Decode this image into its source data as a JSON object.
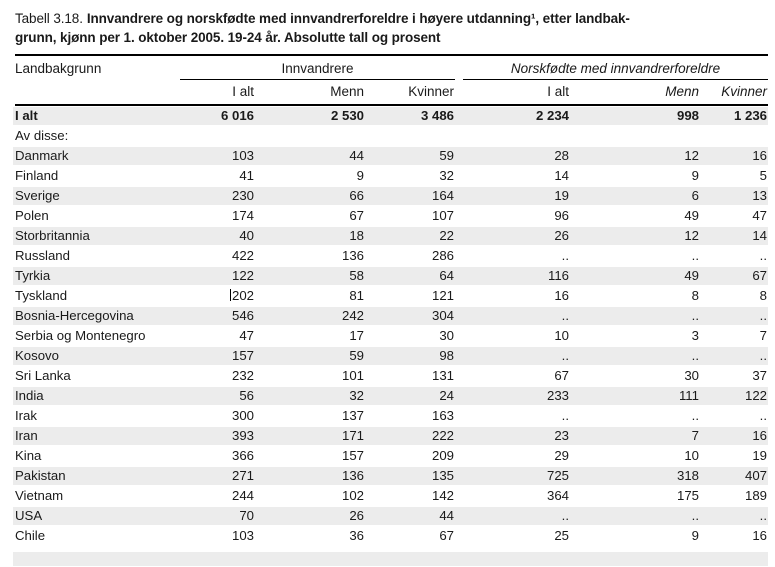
{
  "title": {
    "prefix": "Tabell 3.18.",
    "line1": "Innvandrere og norskfødte med innvandrerforeldre i høyere utdanning¹, etter landbak-",
    "line2": "grunn, kjønn per 1. oktober 2005. 19-24 år. Absolutte tall og prosent"
  },
  "table": {
    "stub_header": "Landbakgrunn",
    "groups": [
      {
        "label": "Innvandrere",
        "italic": false
      },
      {
        "label": "Norskfødte med innvandrerforeldre",
        "italic": true
      }
    ],
    "columns": [
      {
        "label": "I alt",
        "italic": false
      },
      {
        "label": "Menn",
        "italic": false
      },
      {
        "label": "Kvinner",
        "italic": false
      },
      {
        "label": "I alt",
        "italic": false
      },
      {
        "label": "Menn",
        "italic": true
      },
      {
        "label": "Kvinner",
        "italic": true
      }
    ],
    "rows": [
      {
        "label": "I alt",
        "bold": true,
        "shaded": true,
        "values": [
          "6 016",
          "2 530",
          "3 486",
          "2 234",
          "998",
          "1 236"
        ]
      },
      {
        "label": "Av disse:",
        "bold": false,
        "shaded": false,
        "values": [
          "",
          "",
          "",
          "",
          "",
          ""
        ]
      },
      {
        "label": "Danmark",
        "bold": false,
        "shaded": true,
        "values": [
          "103",
          "44",
          "59",
          "28",
          "12",
          "16"
        ]
      },
      {
        "label": "Finland",
        "bold": false,
        "shaded": false,
        "values": [
          "41",
          "9",
          "32",
          "14",
          "9",
          "5"
        ]
      },
      {
        "label": "Sverige",
        "bold": false,
        "shaded": true,
        "values": [
          "230",
          "66",
          "164",
          "19",
          "6",
          "13"
        ]
      },
      {
        "label": "Polen",
        "bold": false,
        "shaded": false,
        "values": [
          "174",
          "67",
          "107",
          "96",
          "49",
          "47"
        ]
      },
      {
        "label": "Storbritannia",
        "bold": false,
        "shaded": true,
        "values": [
          "40",
          "18",
          "22",
          "26",
          "12",
          "14"
        ]
      },
      {
        "label": "Russland",
        "bold": false,
        "shaded": false,
        "values": [
          "422",
          "136",
          "286",
          "..",
          "..",
          ".."
        ]
      },
      {
        "label": "Tyrkia",
        "bold": false,
        "shaded": true,
        "values": [
          "122",
          "58",
          "64",
          "116",
          "49",
          "67"
        ]
      },
      {
        "label": "Tyskland",
        "bold": false,
        "shaded": false,
        "caret": true,
        "values": [
          "202",
          "81",
          "121",
          "16",
          "8",
          "8"
        ]
      },
      {
        "label": "Bosnia-Hercegovina",
        "bold": false,
        "shaded": true,
        "values": [
          "546",
          "242",
          "304",
          "..",
          "..",
          ".."
        ]
      },
      {
        "label": "Serbia og Montenegro",
        "bold": false,
        "shaded": false,
        "values": [
          "47",
          "17",
          "30",
          "10",
          "3",
          "7"
        ]
      },
      {
        "label": "Kosovo",
        "bold": false,
        "shaded": true,
        "values": [
          "157",
          "59",
          "98",
          "..",
          "..",
          ".."
        ]
      },
      {
        "label": "Sri Lanka",
        "bold": false,
        "shaded": false,
        "values": [
          "232",
          "101",
          "131",
          "67",
          "30",
          "37"
        ]
      },
      {
        "label": "India",
        "bold": false,
        "shaded": true,
        "values": [
          "56",
          "32",
          "24",
          "233",
          "111",
          "122"
        ]
      },
      {
        "label": "Irak",
        "bold": false,
        "shaded": false,
        "values": [
          "300",
          "137",
          "163",
          "..",
          "..",
          ".."
        ]
      },
      {
        "label": "Iran",
        "bold": false,
        "shaded": true,
        "values": [
          "393",
          "171",
          "222",
          "23",
          "7",
          "16"
        ]
      },
      {
        "label": "Kina",
        "bold": false,
        "shaded": false,
        "values": [
          "366",
          "157",
          "209",
          "29",
          "10",
          "19"
        ]
      },
      {
        "label": "Pakistan",
        "bold": false,
        "shaded": true,
        "values": [
          "271",
          "136",
          "135",
          "725",
          "318",
          "407"
        ]
      },
      {
        "label": "Vietnam",
        "bold": false,
        "shaded": false,
        "values": [
          "244",
          "102",
          "142",
          "364",
          "175",
          "189"
        ]
      },
      {
        "label": "USA",
        "bold": false,
        "shaded": true,
        "values": [
          "70",
          "26",
          "44",
          "..",
          "..",
          ".."
        ]
      },
      {
        "label": "Chile",
        "bold": false,
        "shaded": false,
        "values": [
          "103",
          "36",
          "67",
          "25",
          "9",
          "16"
        ]
      },
      {
        "label": "",
        "bold": false,
        "shaded": true,
        "partial": true,
        "values": [
          "",
          "",
          "",
          "",
          "",
          ""
        ]
      }
    ]
  },
  "colors": {
    "row_shade": "#ececec",
    "rule": "#000000",
    "text": "#1a1a1a"
  }
}
